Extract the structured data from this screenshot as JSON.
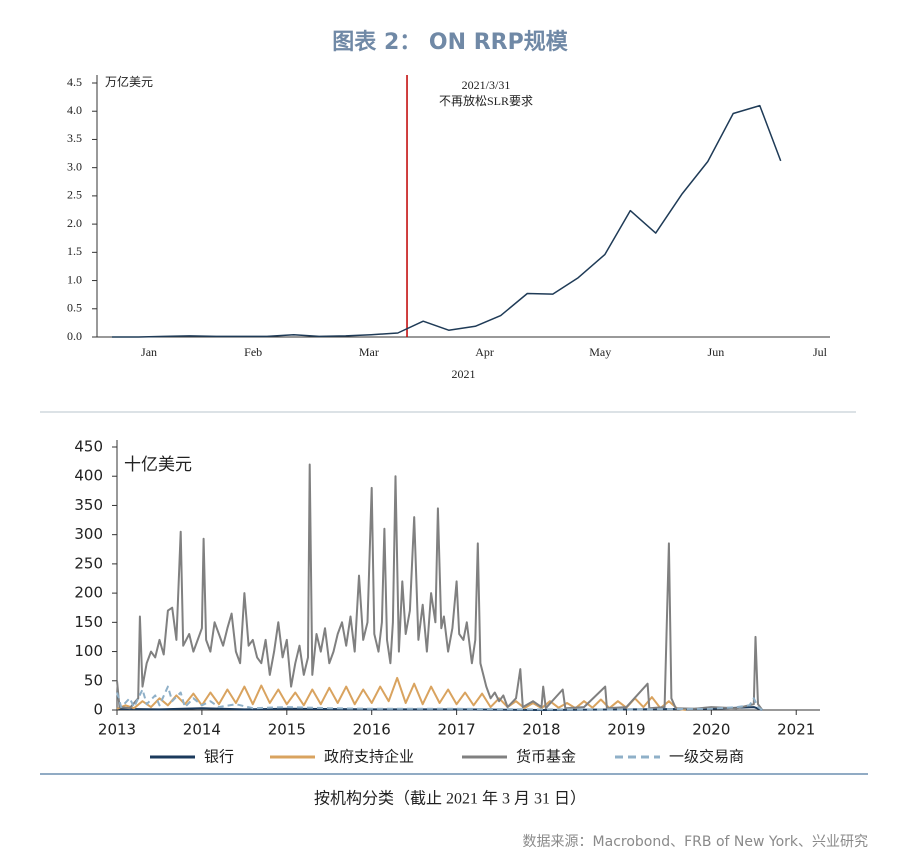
{
  "title": "图表 2： ON RRP规模",
  "chart_data": [
    {
      "type": "line",
      "ylabel": "万亿美元",
      "xlabel": "2021",
      "x": [
        0.18,
        0.41,
        0.63,
        0.85,
        1.08,
        1.3,
        1.52,
        1.75,
        1.97,
        2.2,
        2.42,
        2.65,
        2.87,
        3.09,
        3.32,
        3.54,
        3.77,
        3.99,
        4.21,
        4.44,
        4.66,
        4.88,
        5.11,
        5.33,
        5.55,
        5.78,
        5.96
      ],
      "values": [
        0.0,
        0.0,
        0.01,
        0.02,
        0.01,
        0.01,
        0.01,
        0.04,
        0.01,
        0.02,
        0.04,
        0.07,
        0.28,
        0.12,
        0.19,
        0.38,
        0.77,
        0.76,
        1.05,
        1.46,
        2.24,
        1.84,
        2.54,
        3.11,
        3.96,
        4.1,
        3.12
      ],
      "color": "#1f3b57",
      "xlim": [
        0.05,
        6.3
      ],
      "xticks": [
        {
          "value": 0.5,
          "label": "Jan"
        },
        {
          "value": 1.4,
          "label": "Feb"
        },
        {
          "value": 2.4,
          "label": "Mar"
        },
        {
          "value": 3.4,
          "label": "Apr"
        },
        {
          "value": 4.4,
          "label": "May"
        },
        {
          "value": 5.4,
          "label": "Jun"
        },
        {
          "value": 6.3,
          "label": "Jul"
        }
      ],
      "ylim": [
        0,
        4.5
      ],
      "yticks": [
        {
          "value": 0,
          "label": "0.0"
        },
        0.5,
        {
          "value": 1,
          "label": "1.0"
        },
        1.5,
        {
          "value": 2,
          "label": "2.0"
        },
        2.5,
        {
          "value": 3,
          "label": "3.0"
        },
        3.5,
        {
          "value": 4,
          "label": "4.0"
        },
        4.5
      ],
      "annotations": [
        {
          "x": 2.73,
          "lines": [
            "2021/3/31",
            "不再放松SLR要求"
          ],
          "color": "#c00000"
        }
      ]
    },
    {
      "type": "line",
      "ylabel": "十亿美元",
      "xlim": [
        2013,
        2021.28
      ],
      "xticks": [
        2013,
        2014,
        2015,
        2016,
        2017,
        2018,
        2019,
        2020,
        2021
      ],
      "ylim": [
        0,
        450
      ],
      "yticks": [
        0,
        50,
        100,
        150,
        200,
        250,
        300,
        350,
        400,
        450
      ],
      "series": [
        {
          "name": "银行",
          "color": "#1b3a5c",
          "line_style": "solid",
          "x": [
            2013.0,
            2013.5,
            2014.0,
            2014.5,
            2015.0,
            2016.0,
            2017.0,
            2018.0,
            2019.0,
            2020.0,
            2020.5,
            2020.6
          ],
          "values": [
            2,
            1,
            3,
            1,
            2,
            1,
            1,
            0,
            1,
            2,
            5,
            0
          ]
        },
        {
          "name": "政府支持企业",
          "color": "#d9a35f",
          "line_style": "solid",
          "x": [
            2013.0,
            2013.1,
            2013.2,
            2013.3,
            2013.4,
            2013.5,
            2013.6,
            2013.7,
            2013.8,
            2013.9,
            2014.0,
            2014.1,
            2014.2,
            2014.3,
            2014.4,
            2014.5,
            2014.6,
            2014.7,
            2014.8,
            2014.9,
            2015.0,
            2015.1,
            2015.2,
            2015.3,
            2015.4,
            2015.5,
            2015.6,
            2015.7,
            2015.8,
            2015.9,
            2016.0,
            2016.1,
            2016.2,
            2016.3,
            2016.4,
            2016.5,
            2016.6,
            2016.7,
            2016.8,
            2016.9,
            2017.0,
            2017.1,
            2017.2,
            2017.3,
            2017.4,
            2017.5,
            2017.6,
            2017.7,
            2017.8,
            2017.9,
            2018.0,
            2018.1,
            2018.2,
            2018.3,
            2018.4,
            2018.5,
            2018.6,
            2018.7,
            2018.8,
            2018.9,
            2019.0,
            2019.1,
            2019.2,
            2019.3,
            2019.4,
            2019.5,
            2019.6,
            2019.7
          ],
          "values": [
            2,
            8,
            3,
            15,
            5,
            20,
            8,
            25,
            10,
            28,
            8,
            30,
            10,
            35,
            12,
            40,
            10,
            42,
            12,
            35,
            10,
            30,
            8,
            35,
            10,
            38,
            12,
            40,
            10,
            35,
            12,
            40,
            15,
            55,
            12,
            45,
            10,
            40,
            12,
            35,
            10,
            30,
            8,
            28,
            5,
            20,
            5,
            15,
            3,
            12,
            3,
            15,
            4,
            12,
            3,
            15,
            4,
            18,
            3,
            15,
            4,
            20,
            5,
            22,
            3,
            15,
            2,
            0
          ]
        },
        {
          "name": "货币基金",
          "color": "#808080",
          "line_style": "solid",
          "x": [
            2013.0,
            2013.03,
            2013.15,
            2013.25,
            2013.27,
            2013.3,
            2013.35,
            2013.4,
            2013.45,
            2013.5,
            2013.55,
            2013.6,
            2013.65,
            2013.7,
            2013.75,
            2013.78,
            2013.85,
            2013.9,
            2013.95,
            2014.0,
            2014.02,
            2014.05,
            2014.1,
            2014.15,
            2014.2,
            2014.25,
            2014.3,
            2014.35,
            2014.4,
            2014.45,
            2014.5,
            2014.55,
            2014.6,
            2014.65,
            2014.7,
            2014.75,
            2014.8,
            2014.85,
            2014.9,
            2014.95,
            2015.0,
            2015.05,
            2015.1,
            2015.15,
            2015.2,
            2015.25,
            2015.27,
            2015.3,
            2015.35,
            2015.4,
            2015.45,
            2015.5,
            2015.55,
            2015.6,
            2015.65,
            2015.7,
            2015.75,
            2015.8,
            2015.85,
            2015.9,
            2015.95,
            2016.0,
            2016.03,
            2016.08,
            2016.12,
            2016.15,
            2016.18,
            2016.22,
            2016.25,
            2016.28,
            2016.32,
            2016.36,
            2016.4,
            2016.45,
            2016.5,
            2016.55,
            2016.6,
            2016.65,
            2016.7,
            2016.75,
            2016.78,
            2016.82,
            2016.85,
            2016.9,
            2016.95,
            2017.0,
            2017.03,
            2017.08,
            2017.12,
            2017.18,
            2017.22,
            2017.25,
            2017.28,
            2017.35,
            2017.4,
            2017.45,
            2017.5,
            2017.55,
            2017.6,
            2017.7,
            2017.75,
            2017.78,
            2017.9,
            2018.0,
            2018.02,
            2018.05,
            2018.25,
            2018.28,
            2018.5,
            2018.75,
            2018.77,
            2019.0,
            2019.25,
            2019.27,
            2019.45,
            2019.5,
            2019.53,
            2019.58,
            2019.8,
            2020.0,
            2020.3,
            2020.5,
            2020.52,
            2020.55,
            2020.6
          ],
          "values": [
            50,
            5,
            3,
            20,
            160,
            40,
            80,
            100,
            90,
            120,
            95,
            170,
            175,
            120,
            305,
            110,
            130,
            100,
            120,
            140,
            293,
            120,
            100,
            150,
            130,
            110,
            140,
            165,
            100,
            80,
            200,
            110,
            120,
            90,
            80,
            120,
            60,
            100,
            150,
            90,
            120,
            40,
            80,
            110,
            60,
            90,
            420,
            60,
            130,
            100,
            140,
            80,
            100,
            130,
            150,
            110,
            160,
            100,
            230,
            120,
            150,
            380,
            130,
            100,
            150,
            310,
            120,
            80,
            150,
            400,
            100,
            220,
            130,
            170,
            330,
            120,
            180,
            100,
            200,
            150,
            345,
            140,
            160,
            100,
            140,
            220,
            130,
            120,
            150,
            80,
            120,
            285,
            80,
            40,
            20,
            30,
            15,
            25,
            5,
            20,
            70,
            5,
            15,
            5,
            40,
            3,
            35,
            3,
            5,
            40,
            3,
            5,
            45,
            3,
            5,
            285,
            20,
            3,
            2,
            5,
            3,
            10,
            125,
            10,
            0
          ]
        },
        {
          "name": "一级交易商",
          "color": "#8fb0c8",
          "line_style": "dashed",
          "x": [
            2013.0,
            2013.05,
            2013.15,
            2013.2,
            2013.3,
            2013.35,
            2013.45,
            2013.5,
            2013.6,
            2013.65,
            2013.75,
            2013.8,
            2013.9,
            2014.0,
            2014.1,
            2014.2,
            2014.4,
            2014.6,
            2015.0,
            2015.5,
            2016.0,
            2017.0,
            2018.0,
            2019.0,
            2020.0,
            2020.3,
            2020.45,
            2020.5,
            2020.55,
            2020.6
          ],
          "values": [
            30,
            5,
            20,
            5,
            35,
            10,
            25,
            8,
            40,
            15,
            30,
            5,
            20,
            8,
            15,
            5,
            10,
            3,
            5,
            3,
            2,
            2,
            1,
            1,
            2,
            5,
            8,
            20,
            5,
            0
          ]
        }
      ]
    }
  ],
  "caption": "按机构分类（截止 2021 年 3 月 31 日）",
  "source": "数据来源：Macrobond、FRB of New York、兴业研究"
}
